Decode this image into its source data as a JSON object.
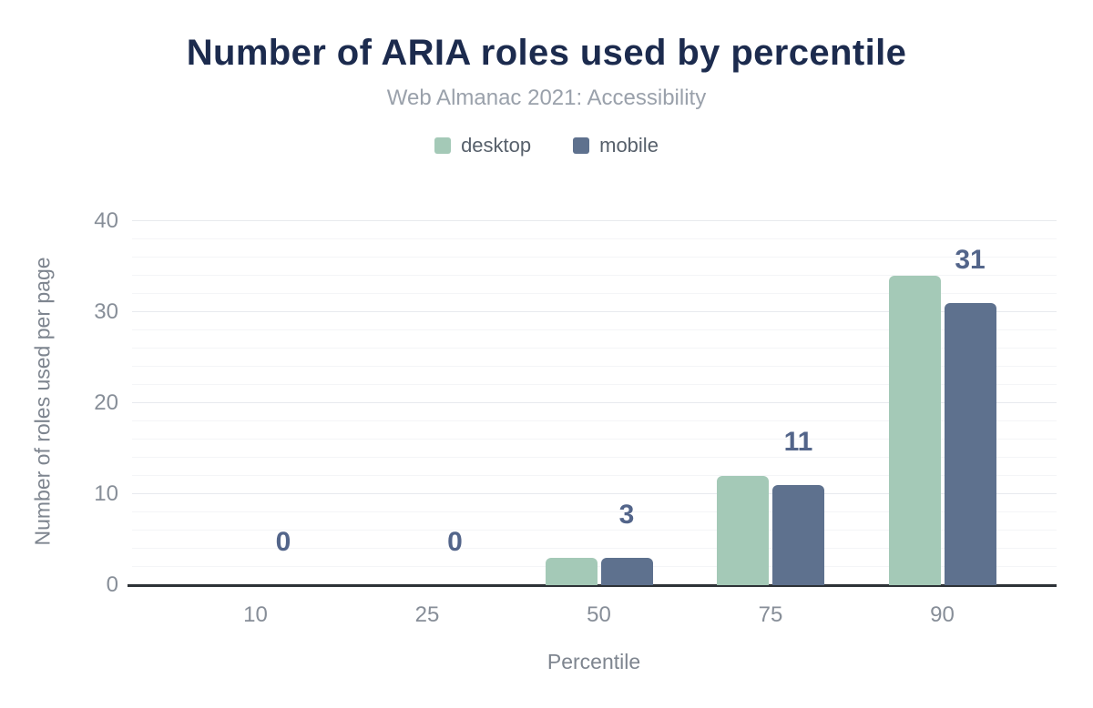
{
  "header": {
    "title": "Number of ARIA roles used by percentile",
    "subtitle": "Web Almanac 2021: Accessibility"
  },
  "legend": [
    {
      "label": "desktop",
      "color": "#a4c9b7"
    },
    {
      "label": "mobile",
      "color": "#5e718e"
    }
  ],
  "chart_data": {
    "type": "bar",
    "title": "Number of ARIA roles used by percentile",
    "subtitle": "Web Almanac 2021: Accessibility",
    "categories": [
      "10",
      "25",
      "50",
      "75",
      "90"
    ],
    "series": [
      {
        "name": "desktop",
        "color": "#a4c9b7",
        "values": [
          0,
          0,
          3,
          12,
          34
        ]
      },
      {
        "name": "mobile",
        "color": "#5e718e",
        "values": [
          0,
          0,
          3,
          11,
          31
        ]
      }
    ],
    "data_labels": {
      "series": "mobile",
      "values": [
        "0",
        "0",
        "3",
        "11",
        "31"
      ],
      "color": "#53658a"
    },
    "xlabel": "Percentile",
    "ylabel": "Number of roles used per page",
    "ylim": [
      0,
      40
    ],
    "yticks": [
      0,
      10,
      20,
      30,
      40
    ],
    "grid": {
      "major_every": 10,
      "minor_every": 2,
      "visible": true
    },
    "legend_position": "top",
    "axis_line_color": "#2d3237",
    "title_color": "#1c2b4e"
  }
}
